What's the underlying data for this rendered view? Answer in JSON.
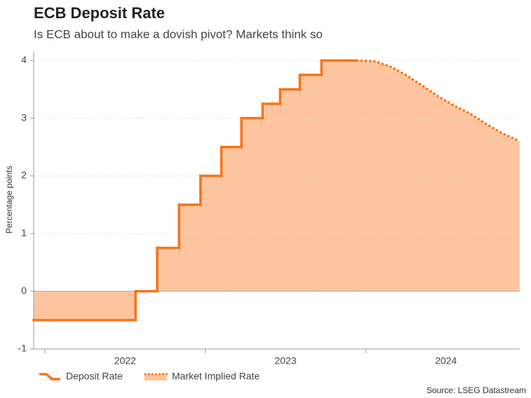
{
  "chart_data": {
    "type": "step-area",
    "title": "ECB Deposit Rate",
    "subtitle": "Is ECB about to make a dovish pivot? Markets think so",
    "ylabel": "Percentage points",
    "source": "Source: LSEG Datastream",
    "area_color": "#fdc59f",
    "xlim": [
      2021.93,
      2024.96
    ],
    "xticks": [
      2022,
      2023,
      2024
    ],
    "ylim": [
      -1,
      4.15
    ],
    "yticks": [
      -1,
      0,
      1,
      2,
      3,
      4
    ],
    "grid": true,
    "series": [
      {
        "name": "Deposit Rate",
        "color": "#f97316",
        "style": "step",
        "x": [
          2021.93,
          2022.565,
          2022.7,
          2022.836,
          2022.97,
          2023.1,
          2023.225,
          2023.357,
          2023.466,
          2023.589,
          2023.724
        ],
        "values": [
          -0.5,
          0,
          0.75,
          1.5,
          2,
          2.5,
          3,
          3.25,
          3.5,
          3.75,
          4
        ]
      },
      {
        "name": "Market Implied Rate",
        "color": "#f97316",
        "style": "dotted",
        "x": [
          2023.947,
          2024.05,
          2024.15,
          2024.25,
          2024.35,
          2024.45,
          2024.55,
          2024.65,
          2024.75,
          2024.85,
          2024.96
        ],
        "values": [
          4.0,
          3.99,
          3.9,
          3.75,
          3.57,
          3.38,
          3.22,
          3.08,
          2.9,
          2.74,
          2.6
        ]
      }
    ]
  }
}
